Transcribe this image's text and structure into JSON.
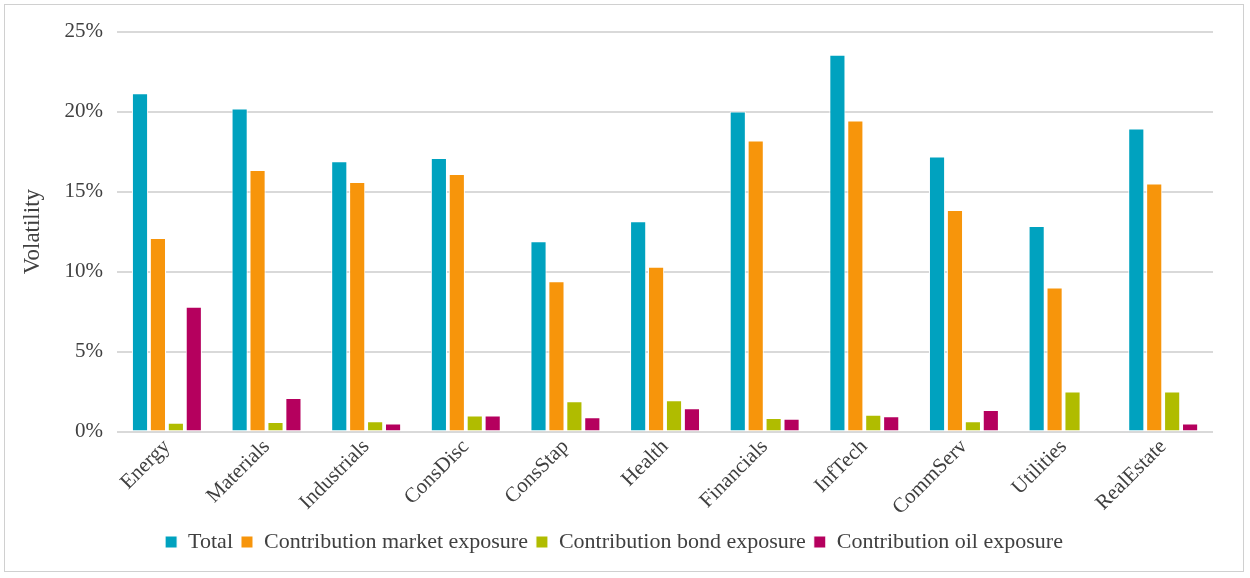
{
  "chart_data": {
    "type": "bar",
    "ylabel": "Volatility",
    "categories": [
      "Energy",
      "Materials",
      "Industrials",
      "ConsDisc",
      "ConsStap",
      "Health",
      "Financials",
      "InfTech",
      "CommServ",
      "Utilities",
      "RealEstate"
    ],
    "series": [
      {
        "name": "Total",
        "color": "#00a2bf",
        "values": [
          21.15,
          20.2,
          16.9,
          17.1,
          11.9,
          13.15,
          20.0,
          23.55,
          17.2,
          12.85,
          18.95
        ]
      },
      {
        "name": "Contribution market exposure",
        "color": "#f7950b",
        "values": [
          12.1,
          16.35,
          15.6,
          16.1,
          9.4,
          10.3,
          18.2,
          19.45,
          13.85,
          9.0,
          15.5
        ]
      },
      {
        "name": "Contribution bond exposure",
        "color": "#b0bc00",
        "values": [
          0.55,
          0.6,
          0.65,
          1.0,
          1.9,
          1.95,
          0.85,
          1.05,
          0.65,
          2.5,
          2.5
        ]
      },
      {
        "name": "Contribution oil exposure",
        "color": "#b5005e",
        "values": [
          7.8,
          2.1,
          0.5,
          1.0,
          0.9,
          1.45,
          0.8,
          0.95,
          1.35,
          null,
          0.5
        ]
      }
    ],
    "ylim": [
      0,
      25
    ],
    "yticks": [
      {
        "value": 0,
        "label": "0%"
      },
      {
        "value": 5,
        "label": "5%"
      },
      {
        "value": 10,
        "label": "10%"
      },
      {
        "value": 15,
        "label": "15%"
      },
      {
        "value": 20,
        "label": "20%"
      },
      {
        "value": 25,
        "label": "25%"
      }
    ],
    "grid": "y",
    "legend": "bottom"
  }
}
